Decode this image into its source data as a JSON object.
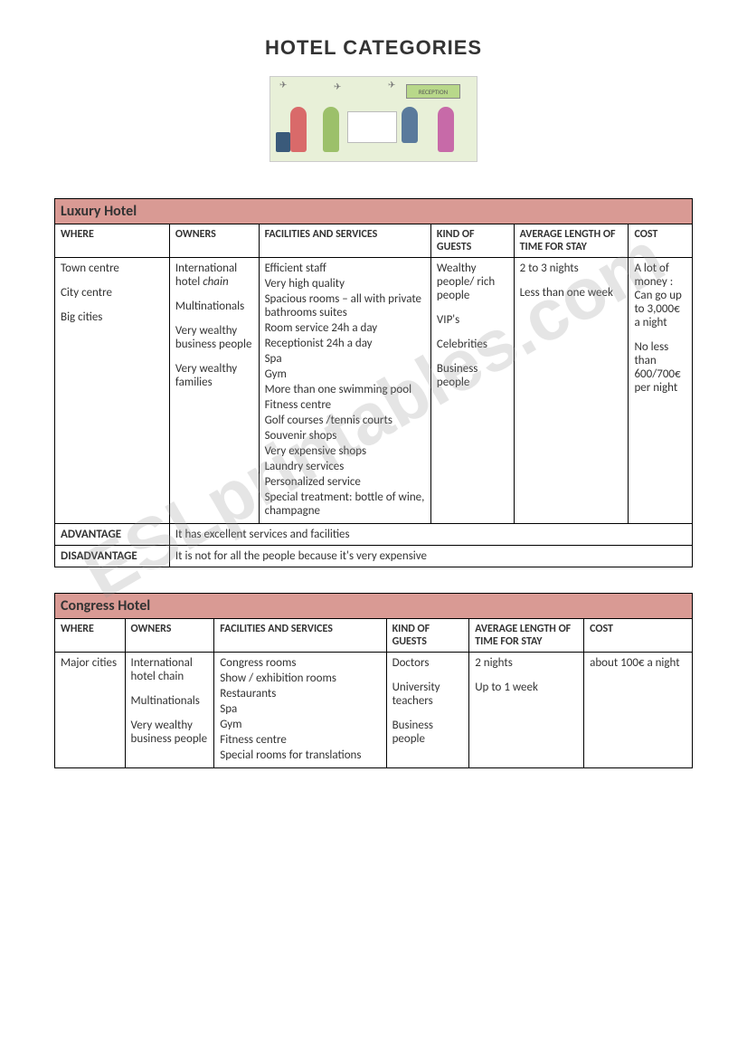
{
  "page_title": "HOTEL CATEGORIES",
  "watermark": "ESLprintables.com",
  "illustration": {
    "reception_label": "RECEPTION"
  },
  "columns": {
    "where": "WHERE",
    "owners": "OWNERS",
    "facilities": "FACILITIES AND SERVICES",
    "guests": "KIND OF GUESTS",
    "length": "AVERAGE LENGTH OF TIME FOR STAY",
    "cost": "COST"
  },
  "luxury": {
    "title": "Luxury Hotel",
    "where": [
      "Town centre",
      "City centre",
      "Big cities"
    ],
    "owners_line1a": "International hotel ",
    "owners_line1b": "chain",
    "owners": [
      "Multinationals",
      "Very wealthy business people",
      "Very wealthy families"
    ],
    "facilities": [
      "Efficient staff",
      "Very high quality",
      "Spacious rooms – all with private bathrooms suites",
      "Room service 24h a day",
      "Receptionist 24h a day",
      "Spa",
      "Gym",
      "More than one swimming pool",
      "Fitness centre",
      "Golf courses /tennis courts",
      "Souvenir shops",
      "Very expensive shops",
      "Laundry services",
      "Personalized service",
      "Special treatment: bottle of wine, champagne"
    ],
    "guests": [
      "Wealthy people/ rich people",
      "VIP's",
      "Celebrities",
      "Business people"
    ],
    "length": [
      "2 to 3 nights",
      "Less than one week"
    ],
    "cost": [
      "A lot of money : Can go up to 3,000€ a night",
      "No less than 600/700€ per night"
    ],
    "advantage_label": "ADVANTAGE",
    "advantage_text": "It has excellent services and facilities",
    "disadvantage_label": "DISADVANTAGE",
    "disadvantage_text": "It is not for all the people because it's very expensive"
  },
  "congress": {
    "title": "Congress Hotel",
    "where": [
      "Major cities"
    ],
    "owners": [
      "International hotel chain",
      "Multinationals",
      "Very wealthy business people"
    ],
    "facilities": [
      "Congress rooms",
      "Show / exhibition rooms",
      "Restaurants",
      "Spa",
      "Gym",
      "Fitness centre",
      "Special rooms for translations"
    ],
    "guests": [
      "Doctors",
      "University teachers",
      "Business people"
    ],
    "length": [
      "2 nights",
      "Up to 1 week"
    ],
    "cost": [
      "about 100€ a night"
    ]
  }
}
